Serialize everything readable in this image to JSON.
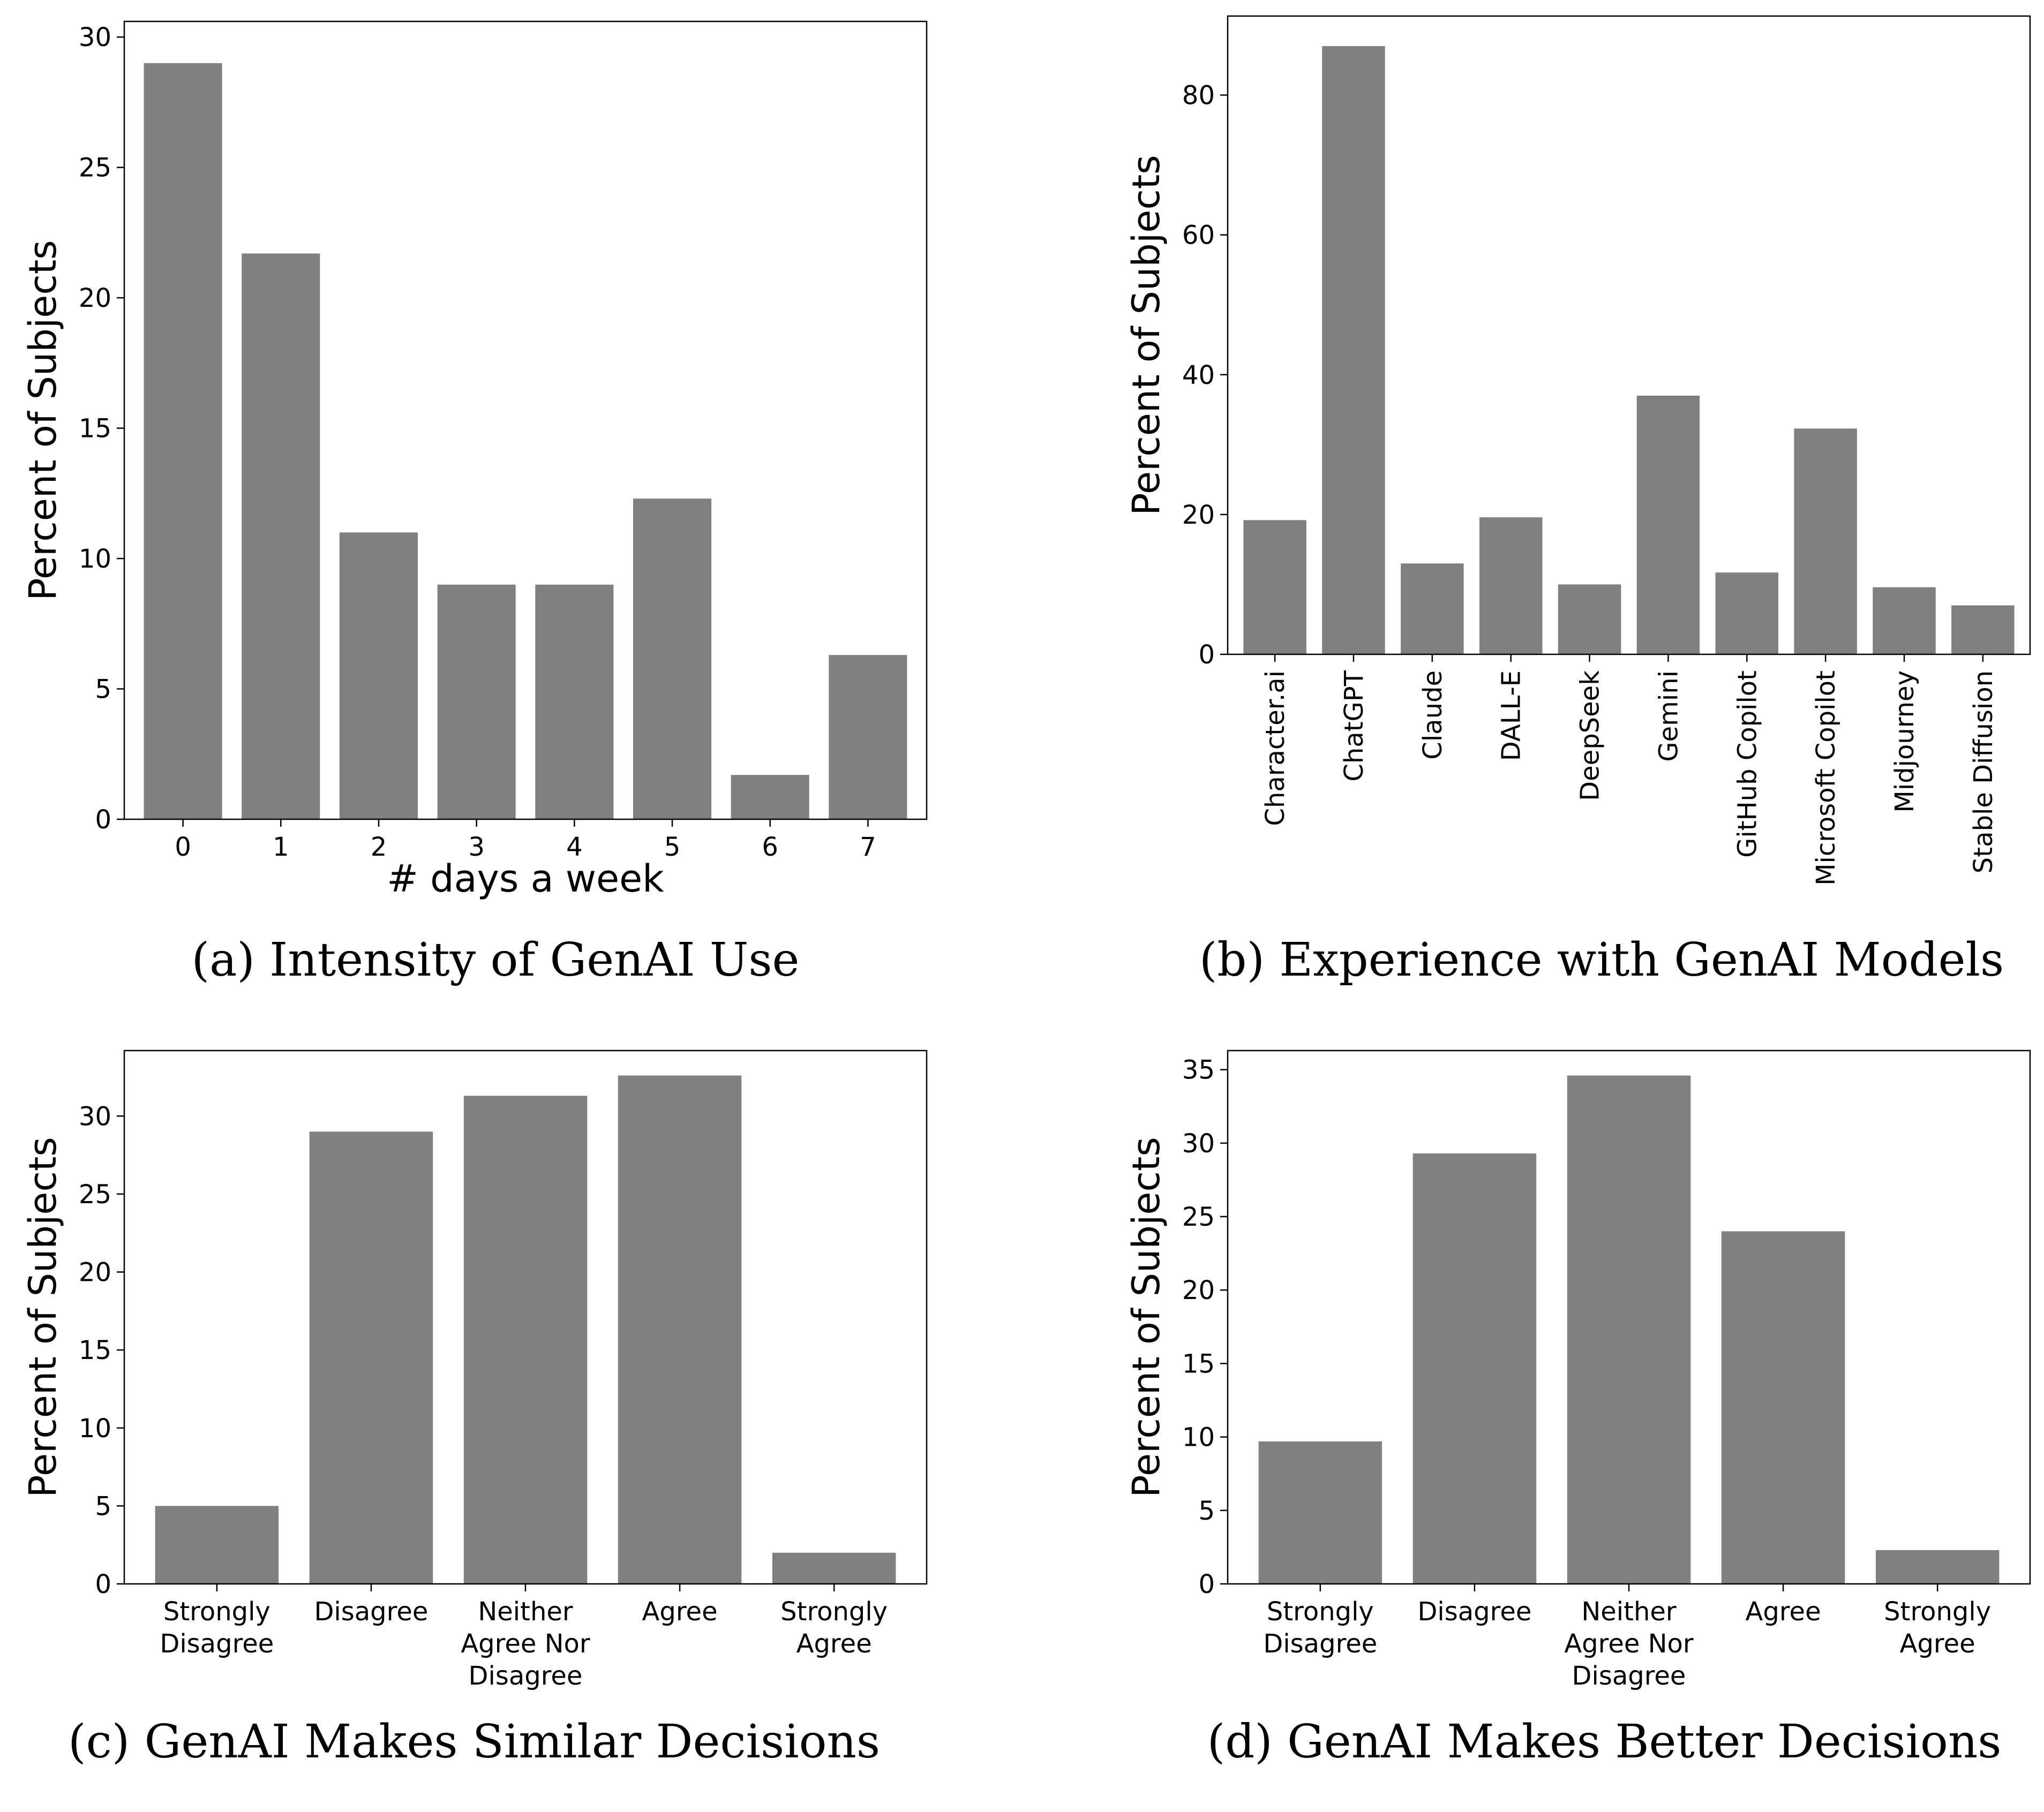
{
  "chart_data": [
    {
      "id": "a",
      "type": "bar",
      "caption": "(a) Intensity of GenAI Use",
      "xlabel": "# days a week",
      "ylabel": "Percent of Subjects",
      "categories": [
        "0",
        "1",
        "2",
        "3",
        "4",
        "5",
        "6",
        "7"
      ],
      "values": [
        29.0,
        21.7,
        11.0,
        9.0,
        9.0,
        12.3,
        1.7,
        6.3
      ],
      "ylim": [
        0,
        30.6
      ],
      "yticks": [
        0,
        5,
        10,
        15,
        20,
        25,
        30
      ],
      "bar_color": "#808080",
      "grid": false
    },
    {
      "id": "b",
      "type": "bar",
      "caption": "(b) Experience with GenAI Models",
      "xlabel": "",
      "ylabel": "Percent of Subjects",
      "categories": [
        "Character.ai",
        "ChatGPT",
        "Claude",
        "DALL-E",
        "DeepSeek",
        "Gemini",
        "GitHub Copilot",
        "Microsoft Copilot",
        "Midjourney",
        "Stable Diffusion"
      ],
      "values": [
        19.2,
        87.0,
        13.0,
        19.6,
        10.0,
        37.0,
        11.7,
        32.3,
        9.6,
        7.0
      ],
      "ylim": [
        0,
        91.3
      ],
      "yticks": [
        0,
        20,
        40,
        60,
        80
      ],
      "bar_color": "#808080",
      "grid": false
    },
    {
      "id": "c",
      "type": "bar",
      "caption": "(c) GenAI Makes Similar Decisions",
      "xlabel": "",
      "ylabel": "Percent of Subjects",
      "categories": [
        "Strongly\nDisagree",
        "Disagree",
        "Neither\nAgree Nor\nDisagree",
        "Agree",
        "Strongly\nAgree"
      ],
      "values": [
        5.0,
        29.0,
        31.3,
        32.6,
        2.0
      ],
      "ylim": [
        0,
        34.2
      ],
      "yticks": [
        0,
        5,
        10,
        15,
        20,
        25,
        30
      ],
      "bar_color": "#808080",
      "grid": false
    },
    {
      "id": "d",
      "type": "bar",
      "caption": "(d) GenAI Makes Better Decisions",
      "xlabel": "",
      "ylabel": "Percent of Subjects",
      "categories": [
        "Strongly\nDisagree",
        "Disagree",
        "Neither\nAgree Nor\nDisagree",
        "Agree",
        "Strongly\nAgree"
      ],
      "values": [
        9.7,
        29.3,
        34.6,
        24.0,
        2.3
      ],
      "ylim": [
        0,
        36.3
      ],
      "yticks": [
        0,
        5,
        10,
        15,
        20,
        25,
        30,
        35
      ],
      "bar_color": "#808080",
      "grid": false
    }
  ]
}
